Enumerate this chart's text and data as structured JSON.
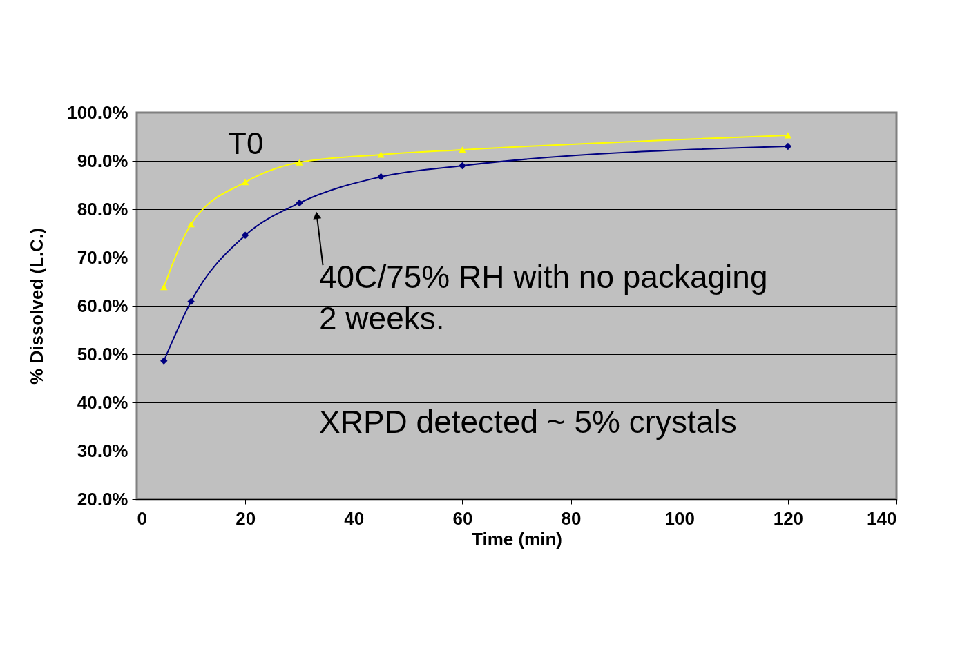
{
  "chart_data": {
    "type": "line",
    "xlabel": "Time (min)",
    "ylabel": "% Dissolved (L.C.)",
    "x": [
      5,
      10,
      20,
      30,
      45,
      60,
      120
    ],
    "series": [
      {
        "name": "T0",
        "color": "#ffff00",
        "marker": "triangle",
        "values": [
          63.9,
          76.9,
          85.6,
          89.7,
          91.3,
          92.3,
          95.3
        ]
      },
      {
        "name": "40C/75% RH with no packaging\n2 weeks.",
        "color": "#000080",
        "marker": "diamond",
        "values": [
          48.6,
          60.9,
          74.6,
          81.3,
          86.7,
          89.0,
          93.0
        ]
      }
    ],
    "annotations": [
      "XRPD detected ~ 5% crystals"
    ],
    "xlim": [
      0,
      140
    ],
    "xticks": [
      0,
      20,
      40,
      60,
      80,
      100,
      120,
      140
    ],
    "ylim": [
      20,
      100
    ],
    "yticks": [
      {
        "value": 20,
        "label": "20.0%"
      },
      {
        "value": 30,
        "label": "30.0%"
      },
      {
        "value": 40,
        "label": "40.0%"
      },
      {
        "value": 50,
        "label": "50.0%"
      },
      {
        "value": 60,
        "label": "60.0%"
      },
      {
        "value": 70,
        "label": "70.0%"
      },
      {
        "value": 80,
        "label": "80.0%"
      },
      {
        "value": 90,
        "label": "90.0%"
      },
      {
        "value": 100,
        "label": "100.0%"
      }
    ],
    "grid": "y"
  }
}
